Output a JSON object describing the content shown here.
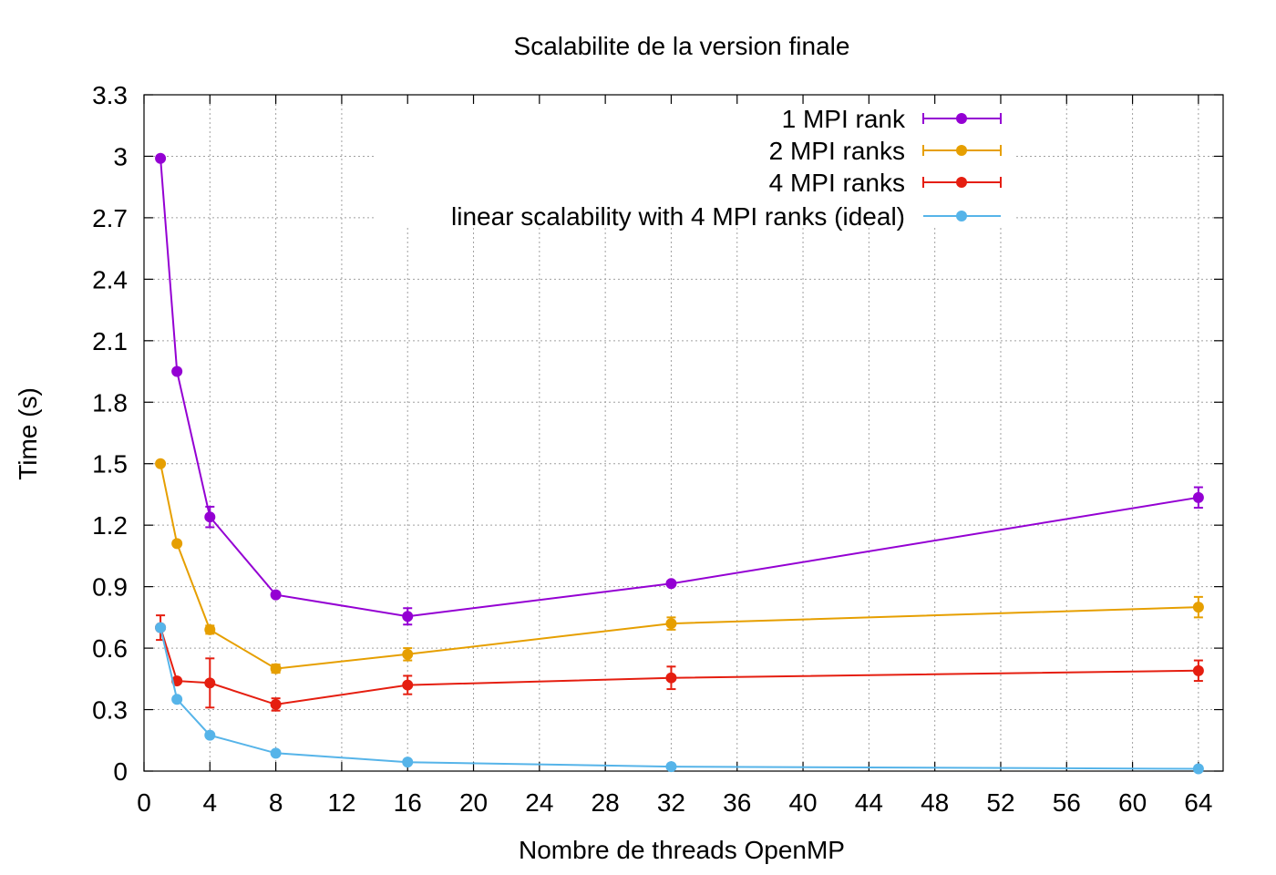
{
  "chart_data": {
    "type": "line",
    "title": "Scalabilite de la version finale",
    "xlabel": "Nombre de threads OpenMP",
    "ylabel": "Time (s)",
    "xlim": [
      0,
      65.5
    ],
    "ylim": [
      0,
      3.3
    ],
    "xticks": [
      0,
      4,
      8,
      12,
      16,
      20,
      24,
      28,
      32,
      36,
      40,
      44,
      48,
      52,
      56,
      60,
      64
    ],
    "yticks": [
      "0",
      "0.3",
      "0.6",
      "0.9",
      "1.2",
      "1.5",
      "1.8",
      "2.1",
      "2.4",
      "2.7",
      "3",
      "3.3"
    ],
    "grid": true,
    "legend_position": "top-right",
    "series": [
      {
        "name": "1 MPI rank",
        "color": "#9400d3",
        "x": [
          1,
          2,
          4,
          8,
          16,
          32,
          64
        ],
        "y": [
          2.99,
          1.95,
          1.24,
          0.86,
          0.755,
          0.915,
          1.335
        ],
        "err": [
          0,
          0,
          0.05,
          0,
          0.04,
          0,
          0.05
        ]
      },
      {
        "name": "2 MPI ranks",
        "color": "#e69f00",
        "x": [
          1,
          2,
          4,
          8,
          16,
          32,
          64
        ],
        "y": [
          1.5,
          1.11,
          0.69,
          0.5,
          0.57,
          0.72,
          0.8
        ],
        "err": [
          0,
          0,
          0.02,
          0.02,
          0.03,
          0.03,
          0.05
        ]
      },
      {
        "name": "4 MPI ranks",
        "color": "#e51e10",
        "x": [
          1,
          2,
          4,
          8,
          16,
          32,
          64
        ],
        "y": [
          0.7,
          0.44,
          0.43,
          0.325,
          0.42,
          0.455,
          0.49
        ],
        "err": [
          0.06,
          0,
          0.12,
          0.03,
          0.045,
          0.055,
          0.05
        ]
      },
      {
        "name": "linear scalability with 4 MPI ranks (ideal)",
        "color": "#56b4e9",
        "x": [
          1,
          2,
          4,
          8,
          16,
          32,
          64
        ],
        "y": [
          0.7,
          0.35,
          0.175,
          0.0875,
          0.04375,
          0.021875,
          0.0109375
        ],
        "err": [
          0,
          0,
          0,
          0,
          0,
          0,
          0
        ]
      }
    ]
  }
}
